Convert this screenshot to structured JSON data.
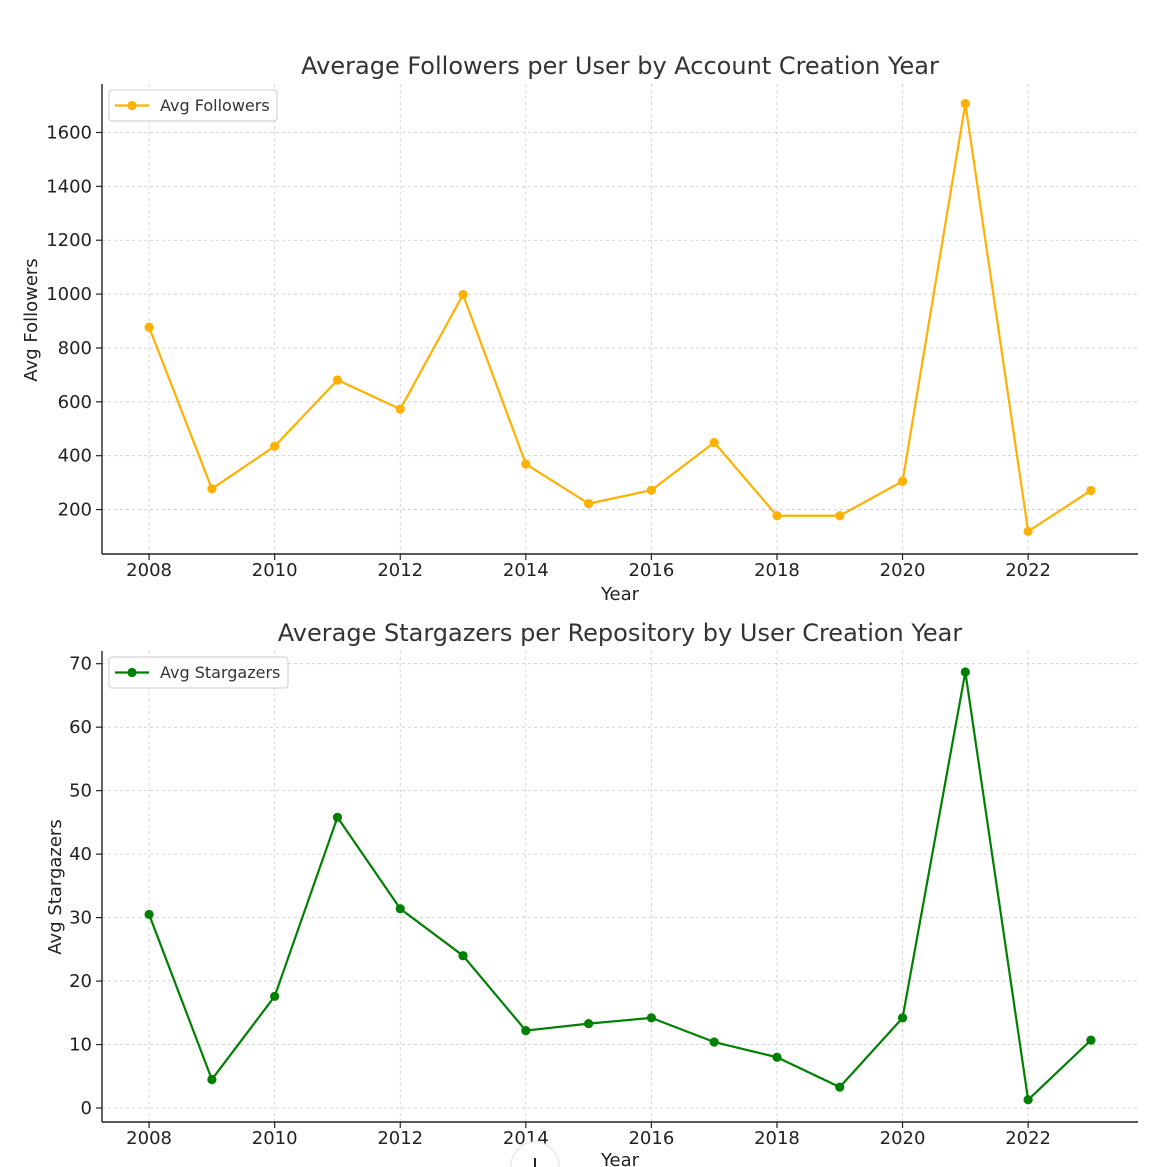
{
  "chart_data": [
    {
      "type": "line",
      "title": "Average Followers per User by Account Creation Year",
      "xlabel": "Year",
      "ylabel": "Avg Followers",
      "x": [
        2008,
        2009,
        2010,
        2011,
        2012,
        2013,
        2014,
        2015,
        2016,
        2017,
        2018,
        2019,
        2020,
        2021,
        2022,
        2023
      ],
      "xticks": [
        2008,
        2010,
        2012,
        2014,
        2016,
        2018,
        2020,
        2022
      ],
      "yticks": [
        200,
        400,
        600,
        800,
        1000,
        1200,
        1400,
        1600
      ],
      "xlim": [
        2007.25,
        2023.75
      ],
      "ylim": [
        35,
        1780
      ],
      "grid": true,
      "legend_position": "top-left",
      "series": [
        {
          "name": "Avg Followers",
          "color": "#FFB000",
          "values": [
            877,
            277,
            435,
            681,
            573,
            998,
            369,
            222,
            272,
            449,
            177,
            177,
            305,
            1707,
            119,
            271
          ]
        }
      ]
    },
    {
      "type": "line",
      "title": "Average Stargazers per Repository by User Creation Year",
      "xlabel": "Year",
      "ylabel": "Avg Stargazers",
      "x": [
        2008,
        2009,
        2010,
        2011,
        2012,
        2013,
        2014,
        2015,
        2016,
        2017,
        2018,
        2019,
        2020,
        2021,
        2022,
        2023
      ],
      "xticks": [
        2008,
        2010,
        2012,
        2014,
        2016,
        2018,
        2020,
        2022
      ],
      "yticks": [
        0,
        10,
        20,
        30,
        40,
        50,
        60,
        70
      ],
      "xlim": [
        2007.25,
        2023.75
      ],
      "ylim": [
        -2.2,
        72
      ],
      "grid": true,
      "legend_position": "top-left",
      "series": [
        {
          "name": "Avg Stargazers",
          "color": "#008000",
          "values": [
            30.5,
            4.5,
            17.6,
            45.8,
            31.4,
            24.0,
            12.2,
            13.3,
            14.2,
            10.4,
            8.0,
            3.3,
            14.2,
            68.7,
            1.3,
            10.7
          ]
        }
      ]
    }
  ]
}
